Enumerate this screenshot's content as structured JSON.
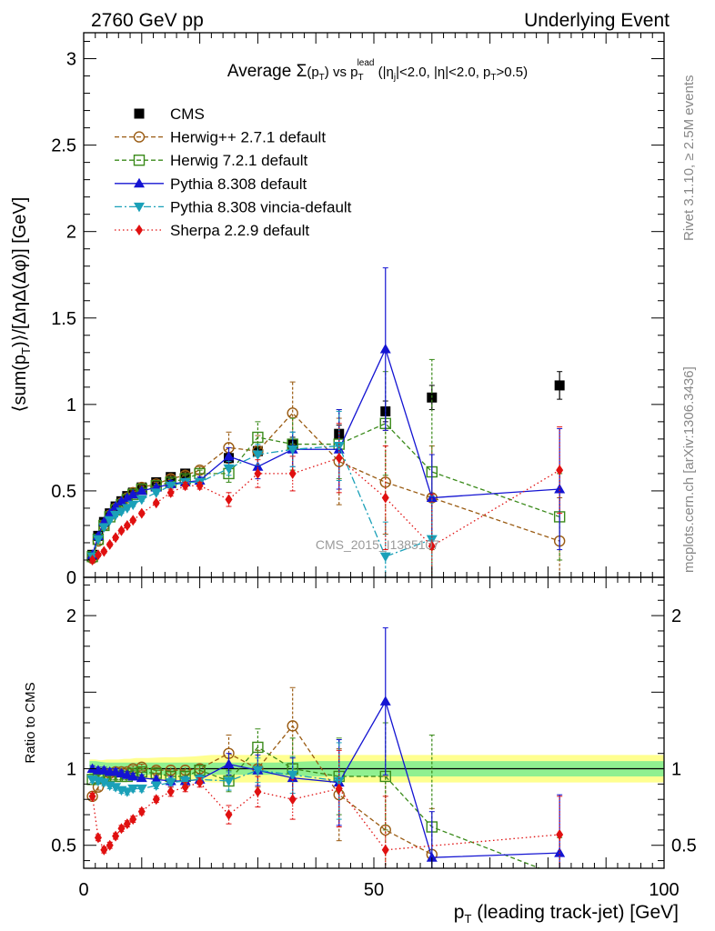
{
  "header": {
    "left": "2760 GeV pp",
    "right": "Underlying Event"
  },
  "side_labels": {
    "rivet": "Rivet 3.1.10, ≥ 2.5M events",
    "mcplots": "mcplots.cern.ch [arXiv:1306.3436]"
  },
  "watermark": "CMS_2015_I1385107",
  "chart_data": [
    {
      "panel": "main",
      "type": "scatter",
      "title": "Average Σ(p_T) vs p_T^lead (|η_j|<2.0, |η|<2.0, p_T>0.5)",
      "title_parts": {
        "pre": "Average ",
        "sigma": "Σ",
        "mid": " vs ",
        "tail": " (|η",
        "tail2": "|<2.0, |η|<2.0, p",
        "tail3": ">0.5)",
        "p": "p",
        "sub_T": "T",
        "sup_lead": "lead",
        "sub_j": "j",
        "paren_open": "(",
        "paren_close": ")"
      },
      "ylabel": "⟨sum(p_T)⟩/[ΔηΔ(Δφ)] [GeV]",
      "ylabel_parts": {
        "a": "⟨sum(p",
        "sub": "T",
        "b": ")⟩/[ΔηΔ(Δφ)] [GeV]"
      },
      "xlim": [
        0,
        100
      ],
      "ylim": [
        0,
        3.15
      ],
      "yticks": [
        "0",
        "0.5",
        "1",
        "1.5",
        "2",
        "2.5",
        "3"
      ],
      "ytick_values": [
        0,
        0.5,
        1,
        1.5,
        2,
        2.5,
        3
      ],
      "legend_position": "top-left",
      "series": [
        {
          "name": "CMS",
          "color": "#000000",
          "marker": "square-filled",
          "line": "none",
          "x": [
            1.5,
            2.5,
            3.5,
            4.5,
            5.5,
            6.5,
            7.5,
            8.5,
            10,
            12.5,
            15,
            17.5,
            25,
            30,
            36,
            44,
            52,
            60,
            82
          ],
          "y": [
            0.13,
            0.24,
            0.32,
            0.37,
            0.41,
            0.44,
            0.47,
            0.49,
            0.52,
            0.55,
            0.58,
            0.6,
            0.69,
            0.73,
            0.77,
            0.83,
            0.96,
            1.04,
            1.11
          ],
          "err": [
            0.01,
            0.01,
            0.01,
            0.01,
            0.01,
            0.01,
            0.01,
            0.01,
            0.02,
            0.02,
            0.02,
            0.02,
            0.03,
            0.03,
            0.04,
            0.05,
            0.06,
            0.07,
            0.08
          ]
        },
        {
          "name": "Herwig++ 2.7.1 default",
          "color": "#9a5b12",
          "marker": "circle-open",
          "line": "dashed",
          "x": [
            1.5,
            2.5,
            3.5,
            4.5,
            5.5,
            6.5,
            7.5,
            8.5,
            10,
            12.5,
            15,
            17.5,
            20,
            25,
            30,
            36,
            44,
            52,
            60,
            82
          ],
          "y": [
            0.11,
            0.21,
            0.3,
            0.36,
            0.4,
            0.43,
            0.46,
            0.49,
            0.52,
            0.54,
            0.57,
            0.59,
            0.62,
            0.75,
            0.73,
            0.95,
            0.67,
            0.55,
            0.46,
            0.21
          ],
          "err": [
            0.01,
            0.01,
            0.01,
            0.01,
            0.01,
            0.01,
            0.01,
            0.01,
            0.01,
            0.01,
            0.02,
            0.02,
            0.02,
            0.09,
            0.09,
            0.18,
            0.25,
            0.3,
            0.3,
            0.25
          ]
        },
        {
          "name": "Herwig 7.2.1 default",
          "color": "#3a8a1a",
          "marker": "square-open",
          "line": "dashed",
          "x": [
            1.5,
            2.5,
            3.5,
            4.5,
            5.5,
            6.5,
            7.5,
            8.5,
            10,
            12.5,
            15,
            17.5,
            20,
            25,
            30,
            36,
            44,
            52,
            60,
            82
          ],
          "y": [
            0.12,
            0.22,
            0.3,
            0.35,
            0.39,
            0.42,
            0.45,
            0.48,
            0.51,
            0.53,
            0.55,
            0.57,
            0.6,
            0.6,
            0.81,
            0.77,
            0.77,
            0.89,
            0.61,
            0.35
          ],
          "err": [
            0.01,
            0.01,
            0.01,
            0.01,
            0.01,
            0.01,
            0.01,
            0.01,
            0.01,
            0.01,
            0.02,
            0.02,
            0.02,
            0.05,
            0.09,
            0.15,
            0.2,
            0.3,
            0.65,
            0.25
          ]
        },
        {
          "name": "Pythia 8.308 default",
          "color": "#1414d2",
          "marker": "triangle-up-filled",
          "line": "solid",
          "x": [
            1.5,
            2.5,
            3.5,
            4.5,
            5.5,
            6.5,
            7.5,
            8.5,
            10,
            12.5,
            15,
            17.5,
            20,
            25,
            30,
            36,
            44,
            52,
            60,
            82
          ],
          "y": [
            0.13,
            0.24,
            0.32,
            0.37,
            0.41,
            0.44,
            0.46,
            0.48,
            0.5,
            0.52,
            0.54,
            0.55,
            0.56,
            0.7,
            0.64,
            0.74,
            0.74,
            1.32,
            0.46,
            0.51
          ],
          "err": [
            0.01,
            0.01,
            0.01,
            0.01,
            0.01,
            0.01,
            0.01,
            0.01,
            0.01,
            0.01,
            0.02,
            0.02,
            0.02,
            0.05,
            0.07,
            0.1,
            0.23,
            0.47,
            0.25,
            0.35
          ]
        },
        {
          "name": "Pythia 8.308 vincia-default",
          "color": "#1aa0b8",
          "marker": "triangle-down-filled",
          "line": "dashdot",
          "x": [
            1.5,
            2.5,
            3.5,
            4.5,
            5.5,
            6.5,
            7.5,
            8.5,
            10,
            12.5,
            15,
            17.5,
            20,
            25,
            30,
            36,
            44,
            52,
            60
          ],
          "y": [
            0.12,
            0.22,
            0.29,
            0.33,
            0.36,
            0.38,
            0.4,
            0.42,
            0.45,
            0.49,
            0.53,
            0.55,
            0.55,
            0.63,
            0.71,
            0.74,
            0.76,
            0.12,
            0.22
          ],
          "err": [
            0.01,
            0.01,
            0.01,
            0.01,
            0.01,
            0.01,
            0.01,
            0.01,
            0.01,
            0.01,
            0.02,
            0.02,
            0.02,
            0.04,
            0.06,
            0.1,
            0.2,
            0.2,
            0.25
          ]
        },
        {
          "name": "Sherpa 2.2.9 default",
          "color": "#e01010",
          "marker": "diamond-filled",
          "line": "dotted",
          "x": [
            1.5,
            2.5,
            3.5,
            4.5,
            5.5,
            6.5,
            7.5,
            8.5,
            10,
            12.5,
            15,
            17.5,
            20,
            25,
            30,
            36,
            44,
            52,
            60,
            82
          ],
          "y": [
            0.1,
            0.13,
            0.15,
            0.19,
            0.23,
            0.27,
            0.3,
            0.33,
            0.37,
            0.43,
            0.49,
            0.53,
            0.53,
            0.45,
            0.6,
            0.6,
            0.69,
            0.46,
            0.18,
            0.62
          ],
          "err": [
            0.01,
            0.01,
            0.01,
            0.01,
            0.01,
            0.01,
            0.01,
            0.01,
            0.01,
            0.01,
            0.02,
            0.02,
            0.02,
            0.04,
            0.08,
            0.1,
            0.2,
            0.3,
            0.3,
            0.25
          ]
        }
      ]
    },
    {
      "panel": "ratio",
      "type": "scatter",
      "ylabel": "Ratio to CMS",
      "xlabel": "p_T (leading track-jet) [GeV]",
      "xlabel_parts": {
        "p": "p",
        "sub": "T",
        "rest": " (leading track-jet) [GeV]"
      },
      "xlim": [
        0,
        100
      ],
      "ylim": [
        0.35,
        2.25
      ],
      "xticks": [
        "0",
        "50",
        "100"
      ],
      "xtick_values": [
        0,
        50,
        100
      ],
      "yticks": [
        "0.5",
        "1",
        "2"
      ],
      "ytick_values": [
        0.5,
        1,
        2
      ],
      "band_stat_color": "#90f090",
      "band_total_color": "#ffff90",
      "band_x": [
        1,
        2,
        3,
        4,
        5,
        6,
        7,
        8,
        9,
        11,
        14,
        16,
        19,
        22,
        27,
        33,
        40,
        48,
        56,
        64,
        100
      ],
      "band_stat": [
        0.05,
        0.05,
        0.045,
        0.04,
        0.04,
        0.04,
        0.04,
        0.04,
        0.04,
        0.04,
        0.04,
        0.04,
        0.04,
        0.04,
        0.04,
        0.04,
        0.05,
        0.05,
        0.05,
        0.05,
        0.05
      ],
      "band_total": [
        0.06,
        0.06,
        0.055,
        0.06,
        0.06,
        0.06,
        0.065,
        0.065,
        0.07,
        0.07,
        0.075,
        0.075,
        0.08,
        0.09,
        0.09,
        0.09,
        0.09,
        0.09,
        0.09,
        0.09,
        0.09
      ],
      "series": [
        {
          "name": "Herwig++ 2.7.1 default",
          "color": "#9a5b12",
          "marker": "circle-open",
          "line": "dashed",
          "x": [
            1.5,
            2.5,
            3.5,
            4.5,
            5.5,
            6.5,
            7.5,
            8.5,
            10,
            12.5,
            15,
            17.5,
            20,
            25,
            30,
            36,
            44,
            52,
            60
          ],
          "y": [
            0.82,
            0.88,
            0.95,
            0.97,
            0.98,
            0.98,
            0.98,
            1.0,
            1.01,
            0.99,
            0.99,
            0.99,
            1.0,
            1.1,
            1.0,
            1.28,
            0.83,
            0.6,
            0.44
          ],
          "err": [
            0.02,
            0.02,
            0.02,
            0.02,
            0.02,
            0.02,
            0.02,
            0.02,
            0.02,
            0.02,
            0.03,
            0.03,
            0.03,
            0.12,
            0.12,
            0.25,
            0.3,
            0.35,
            0.3
          ]
        },
        {
          "name": "Herwig 7.2.1 default",
          "color": "#3a8a1a",
          "marker": "square-open",
          "line": "dashed",
          "x": [
            1.5,
            2.5,
            3.5,
            4.5,
            5.5,
            6.5,
            7.5,
            8.5,
            10,
            12.5,
            15,
            17.5,
            20,
            25,
            30,
            36,
            44,
            52,
            60,
            82
          ],
          "y": [
            0.93,
            0.94,
            0.95,
            0.95,
            0.95,
            0.95,
            0.95,
            0.97,
            0.98,
            0.97,
            0.95,
            0.95,
            0.99,
            0.92,
            1.14,
            1.0,
            0.95,
            0.95,
            0.62,
            0.3
          ],
          "err": [
            0.02,
            0.02,
            0.02,
            0.02,
            0.02,
            0.02,
            0.02,
            0.02,
            0.02,
            0.02,
            0.03,
            0.03,
            0.03,
            0.07,
            0.12,
            0.2,
            0.25,
            0.35,
            0.6,
            0.25
          ]
        },
        {
          "name": "Pythia 8.308 default",
          "color": "#1414d2",
          "marker": "triangle-up-filled",
          "line": "solid",
          "x": [
            1.5,
            2.5,
            3.5,
            4.5,
            5.5,
            6.5,
            7.5,
            8.5,
            10,
            12.5,
            15,
            17.5,
            20,
            25,
            30,
            36,
            44,
            52,
            60,
            82
          ],
          "y": [
            1.0,
            0.99,
            0.99,
            0.98,
            0.98,
            0.97,
            0.96,
            0.95,
            0.94,
            0.93,
            0.92,
            0.92,
            0.93,
            1.03,
            0.99,
            0.94,
            0.91,
            1.44,
            0.42,
            0.45
          ],
          "err": [
            0.02,
            0.02,
            0.02,
            0.02,
            0.02,
            0.02,
            0.02,
            0.02,
            0.02,
            0.02,
            0.03,
            0.03,
            0.03,
            0.07,
            0.1,
            0.13,
            0.28,
            0.48,
            0.3,
            0.38
          ]
        },
        {
          "name": "Pythia 8.308 vincia-default",
          "color": "#1aa0b8",
          "marker": "triangle-down-filled",
          "line": "dashdot",
          "x": [
            1.5,
            2.5,
            3.5,
            4.5,
            5.5,
            6.5,
            7.5,
            8.5,
            10,
            12.5,
            15,
            17.5,
            20,
            25,
            30,
            36,
            44
          ],
          "y": [
            0.93,
            0.92,
            0.91,
            0.89,
            0.88,
            0.86,
            0.85,
            0.87,
            0.87,
            0.89,
            0.91,
            0.92,
            0.93,
            0.92,
            0.99,
            0.96,
            0.92
          ],
          "err": [
            0.02,
            0.02,
            0.02,
            0.02,
            0.02,
            0.02,
            0.02,
            0.02,
            0.02,
            0.02,
            0.03,
            0.03,
            0.03,
            0.06,
            0.08,
            0.12,
            0.25
          ]
        },
        {
          "name": "Sherpa 2.2.9 default",
          "color": "#e01010",
          "marker": "diamond-filled",
          "line": "dotted",
          "x": [
            1.5,
            2.5,
            3.5,
            4.5,
            5.5,
            6.5,
            7.5,
            8.5,
            10,
            12.5,
            15,
            17.5,
            20,
            25,
            30,
            36,
            44,
            52,
            82
          ],
          "y": [
            0.82,
            0.55,
            0.47,
            0.5,
            0.56,
            0.61,
            0.64,
            0.67,
            0.72,
            0.8,
            0.85,
            0.88,
            0.91,
            0.7,
            0.85,
            0.8,
            0.87,
            0.47,
            0.57
          ],
          "err": [
            0.02,
            0.02,
            0.02,
            0.02,
            0.02,
            0.02,
            0.02,
            0.02,
            0.02,
            0.02,
            0.03,
            0.03,
            0.03,
            0.06,
            0.1,
            0.13,
            0.25,
            0.35,
            0.25
          ]
        }
      ]
    }
  ]
}
